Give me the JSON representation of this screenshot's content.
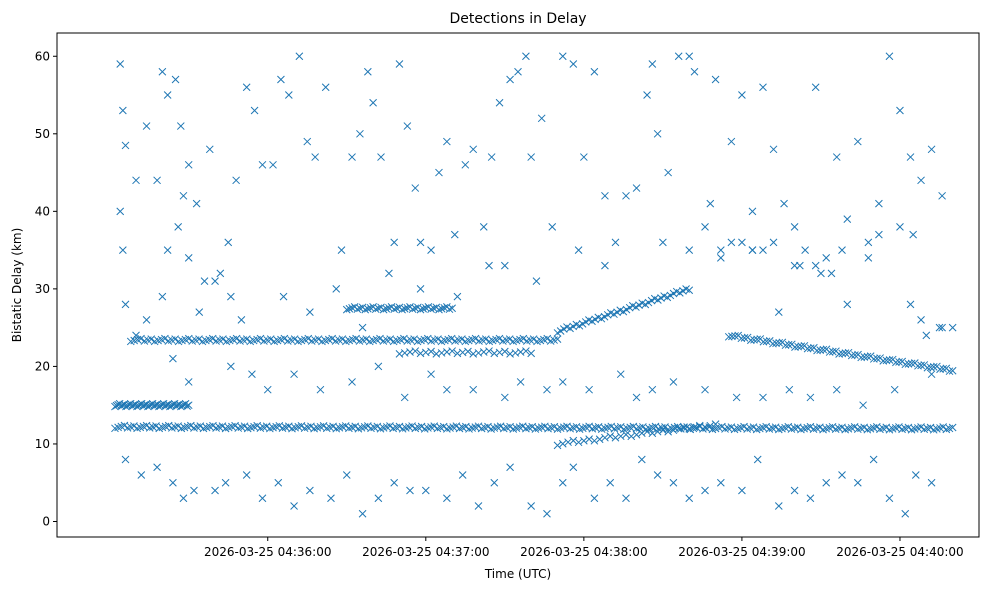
{
  "chart_data": {
    "type": "scatter",
    "title": "Detections in Delay",
    "xlabel": "Time (UTC)",
    "ylabel": "Bistatic Delay (km)",
    "marker": "x",
    "color": "#1f77b4",
    "x_unit": "seconds after 2026-03-25 04:35:00",
    "xlim": [
      -20,
      330
    ],
    "ylim": [
      -2,
      63
    ],
    "x_ticks": [
      {
        "value": 60,
        "label": "2026-03-25 04:36:00"
      },
      {
        "value": 120,
        "label": "2026-03-25 04:37:00"
      },
      {
        "value": 180,
        "label": "2026-03-25 04:38:00"
      },
      {
        "value": 240,
        "label": "2026-03-25 04:39:00"
      },
      {
        "value": 300,
        "label": "2026-03-25 04:40:00"
      }
    ],
    "y_ticks": [
      {
        "value": 0,
        "label": "0"
      },
      {
        "value": 10,
        "label": "10"
      },
      {
        "value": 20,
        "label": "20"
      },
      {
        "value": 30,
        "label": "30"
      },
      {
        "value": 40,
        "label": "40"
      },
      {
        "value": 50,
        "label": "50"
      },
      {
        "value": 60,
        "label": "60"
      }
    ],
    "tracks": [
      {
        "name": "track-12km",
        "x_start": 2,
        "x_end": 320,
        "y_start": 12.2,
        "y_end": 12.0,
        "step": 1.2
      },
      {
        "name": "track-15km",
        "x_start": 2,
        "x_end": 30,
        "y_start": 15.0,
        "y_end": 15.0,
        "step": 0.6
      },
      {
        "name": "track-23km",
        "x_start": 8,
        "x_end": 170,
        "y_start": 23.4,
        "y_end": 23.4,
        "step": 1.3
      },
      {
        "name": "track-27km",
        "x_start": 90,
        "x_end": 130,
        "y_start": 27.5,
        "y_end": 27.5,
        "step": 1.0
      },
      {
        "name": "track-rising",
        "x_start": 170,
        "x_end": 220,
        "y_start": 24.5,
        "y_end": 30.0,
        "step": 1.2
      },
      {
        "name": "track-falling",
        "x_start": 235,
        "x_end": 320,
        "y_start": 24.0,
        "y_end": 19.5,
        "step": 1.2
      },
      {
        "name": "track-10km",
        "x_start": 170,
        "x_end": 230,
        "y_start": 10.0,
        "y_end": 12.5,
        "step": 2.0
      },
      {
        "name": "track-21km",
        "x_start": 110,
        "x_end": 160,
        "y_start": 21.8,
        "y_end": 21.8,
        "step": 2.0
      }
    ],
    "scatter_points": [
      [
        4,
        59
      ],
      [
        4,
        40
      ],
      [
        5,
        53
      ],
      [
        5,
        35
      ],
      [
        6,
        48.5
      ],
      [
        10,
        44
      ],
      [
        14,
        51
      ],
      [
        18,
        44
      ],
      [
        20,
        58
      ],
      [
        22,
        55
      ],
      [
        25,
        57
      ],
      [
        27,
        51
      ],
      [
        28,
        42
      ],
      [
        30,
        46
      ],
      [
        33,
        41
      ],
      [
        38,
        48
      ],
      [
        45,
        36
      ],
      [
        48,
        44
      ],
      [
        52,
        56
      ],
      [
        55,
        53
      ],
      [
        58,
        46
      ],
      [
        62,
        46
      ],
      [
        65,
        57
      ],
      [
        68,
        55
      ],
      [
        72,
        60
      ],
      [
        75,
        49
      ],
      [
        78,
        47
      ],
      [
        82,
        56
      ],
      [
        88,
        35
      ],
      [
        92,
        47
      ],
      [
        95,
        50
      ],
      [
        98,
        58
      ],
      [
        100,
        54
      ],
      [
        103,
        47
      ],
      [
        108,
        36
      ],
      [
        110,
        59
      ],
      [
        113,
        51
      ],
      [
        116,
        43
      ],
      [
        118,
        36
      ],
      [
        122,
        35
      ],
      [
        125,
        45
      ],
      [
        128,
        49
      ],
      [
        131,
        37
      ],
      [
        135,
        46
      ],
      [
        138,
        48
      ],
      [
        142,
        38
      ],
      [
        145,
        47
      ],
      [
        148,
        54
      ],
      [
        150,
        33
      ],
      [
        152,
        57
      ],
      [
        155,
        58
      ],
      [
        158,
        60
      ],
      [
        160,
        47
      ],
      [
        164,
        52
      ],
      [
        168,
        38
      ],
      [
        172,
        60
      ],
      [
        176,
        59
      ],
      [
        180,
        47
      ],
      [
        184,
        58
      ],
      [
        188,
        42
      ],
      [
        192,
        36
      ],
      [
        196,
        42
      ],
      [
        200,
        43
      ],
      [
        204,
        55
      ],
      [
        206,
        59
      ],
      [
        208,
        50
      ],
      [
        212,
        45
      ],
      [
        216,
        60
      ],
      [
        220,
        60
      ],
      [
        222,
        58
      ],
      [
        226,
        38
      ],
      [
        230,
        57
      ],
      [
        236,
        49
      ],
      [
        240,
        55
      ],
      [
        244,
        40
      ],
      [
        248,
        56
      ],
      [
        252,
        48
      ],
      [
        256,
        41
      ],
      [
        260,
        33
      ],
      [
        264,
        35
      ],
      [
        268,
        56
      ],
      [
        272,
        34
      ],
      [
        276,
        47
      ],
      [
        280,
        39
      ],
      [
        284,
        49
      ],
      [
        288,
        36
      ],
      [
        292,
        41
      ],
      [
        296,
        60
      ],
      [
        300,
        53
      ],
      [
        304,
        47
      ],
      [
        308,
        44
      ],
      [
        312,
        48
      ],
      [
        316,
        42
      ],
      [
        6,
        8
      ],
      [
        12,
        6
      ],
      [
        18,
        7
      ],
      [
        24,
        5
      ],
      [
        28,
        3
      ],
      [
        32,
        4
      ],
      [
        40,
        4
      ],
      [
        44,
        5
      ],
      [
        52,
        6
      ],
      [
        58,
        3
      ],
      [
        64,
        5
      ],
      [
        70,
        2
      ],
      [
        76,
        4
      ],
      [
        84,
        3
      ],
      [
        90,
        6
      ],
      [
        96,
        1
      ],
      [
        102,
        3
      ],
      [
        108,
        5
      ],
      [
        114,
        4
      ],
      [
        120,
        4
      ],
      [
        128,
        3
      ],
      [
        134,
        6
      ],
      [
        140,
        2
      ],
      [
        146,
        5
      ],
      [
        152,
        7
      ],
      [
        160,
        2
      ],
      [
        166,
        1
      ],
      [
        172,
        5
      ],
      [
        176,
        7
      ],
      [
        184,
        3
      ],
      [
        190,
        5
      ],
      [
        196,
        3
      ],
      [
        202,
        8
      ],
      [
        208,
        6
      ],
      [
        214,
        5
      ],
      [
        220,
        3
      ],
      [
        226,
        4
      ],
      [
        232,
        5
      ],
      [
        240,
        4
      ],
      [
        246,
        8
      ],
      [
        254,
        2
      ],
      [
        260,
        4
      ],
      [
        266,
        3
      ],
      [
        272,
        5
      ],
      [
        278,
        6
      ],
      [
        284,
        5
      ],
      [
        290,
        8
      ],
      [
        296,
        3
      ],
      [
        302,
        1
      ],
      [
        306,
        6
      ],
      [
        312,
        5
      ],
      [
        6,
        28
      ],
      [
        10,
        24
      ],
      [
        14,
        26
      ],
      [
        20,
        29
      ],
      [
        24,
        21
      ],
      [
        30,
        18
      ],
      [
        34,
        27
      ],
      [
        40,
        31
      ],
      [
        46,
        20
      ],
      [
        50,
        26
      ],
      [
        54,
        19
      ],
      [
        60,
        17
      ],
      [
        66,
        29
      ],
      [
        70,
        19
      ],
      [
        76,
        27
      ],
      [
        80,
        17
      ],
      [
        86,
        30
      ],
      [
        92,
        18
      ],
      [
        96,
        25
      ],
      [
        102,
        20
      ],
      [
        106,
        32
      ],
      [
        112,
        16
      ],
      [
        118,
        30
      ],
      [
        122,
        19
      ],
      [
        128,
        17
      ],
      [
        132,
        29
      ],
      [
        138,
        17
      ],
      [
        144,
        33
      ],
      [
        150,
        16
      ],
      [
        156,
        18
      ],
      [
        162,
        31
      ],
      [
        166,
        17
      ],
      [
        172,
        18
      ],
      [
        178,
        35
      ],
      [
        182,
        17
      ],
      [
        188,
        33
      ],
      [
        194,
        19
      ],
      [
        200,
        16
      ],
      [
        206,
        17
      ],
      [
        210,
        36
      ],
      [
        214,
        18
      ],
      [
        220,
        35
      ],
      [
        226,
        17
      ],
      [
        232,
        34
      ],
      [
        238,
        16
      ],
      [
        244,
        35
      ],
      [
        248,
        16
      ],
      [
        254,
        27
      ],
      [
        258,
        17
      ],
      [
        262,
        33
      ],
      [
        266,
        16
      ],
      [
        270,
        32
      ],
      [
        276,
        17
      ],
      [
        280,
        28
      ],
      [
        286,
        15
      ],
      [
        292,
        37
      ],
      [
        298,
        17
      ],
      [
        304,
        28
      ],
      [
        308,
        26
      ],
      [
        312,
        19
      ],
      [
        316,
        25
      ],
      [
        22,
        35
      ],
      [
        26,
        38
      ],
      [
        30,
        34
      ],
      [
        36,
        31
      ],
      [
        42,
        32
      ],
      [
        46,
        29
      ],
      [
        228,
        41
      ],
      [
        232,
        35
      ],
      [
        236,
        36
      ],
      [
        240,
        36
      ],
      [
        244,
        35
      ],
      [
        248,
        35
      ],
      [
        252,
        36
      ],
      [
        260,
        38
      ],
      [
        268,
        33
      ],
      [
        274,
        32
      ],
      [
        278,
        35
      ],
      [
        288,
        34
      ],
      [
        300,
        38
      ],
      [
        305,
        37
      ],
      [
        310,
        24
      ],
      [
        315,
        25
      ],
      [
        320,
        25
      ]
    ]
  }
}
